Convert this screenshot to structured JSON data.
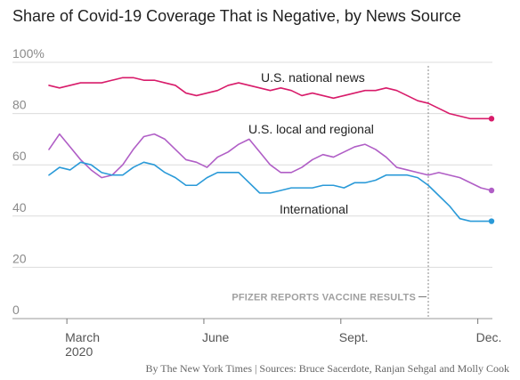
{
  "colors": {
    "national": "#d81b6a",
    "local": "#b05ec6",
    "international": "#2a9ad8"
  },
  "chart_data": {
    "type": "line",
    "title": "Share of Covid-19 Coverage That is Negative, by News Source",
    "ylim": [
      0,
      100
    ],
    "y_ticks": [
      "100%",
      "80",
      "60",
      "40",
      "20",
      "0"
    ],
    "y_tick_values": [
      100,
      80,
      60,
      40,
      20,
      0
    ],
    "x_tick_labels": [
      {
        "label": "March",
        "sublabel": "2020",
        "week": 1.7
      },
      {
        "label": "June",
        "sublabel": "",
        "week": 14.7
      },
      {
        "label": "Sept.",
        "sublabel": "",
        "week": 27.7
      },
      {
        "label": "Dec.",
        "sublabel": "",
        "week": 40.7
      }
    ],
    "x": [
      0,
      1,
      2,
      3,
      4,
      5,
      6,
      7,
      8,
      9,
      10,
      11,
      12,
      13,
      14,
      15,
      16,
      17,
      18,
      19,
      20,
      21,
      22,
      23,
      24,
      25,
      26,
      27,
      28,
      29,
      30,
      31,
      32,
      33,
      34,
      35,
      36,
      37,
      38,
      39,
      40,
      41,
      42
    ],
    "series": [
      {
        "name": "U.S. national news",
        "color_key": "national",
        "values": [
          91,
          90,
          91,
          92,
          92,
          92,
          93,
          94,
          94,
          93,
          93,
          92,
          91,
          88,
          87,
          88,
          89,
          91,
          92,
          91,
          90,
          89,
          90,
          89,
          87,
          88,
          87,
          86,
          87,
          88,
          89,
          89,
          90,
          89,
          87,
          85,
          84,
          82,
          80,
          79,
          78,
          78,
          78
        ]
      },
      {
        "name": "U.S. local and regional",
        "color_key": "local",
        "values": [
          66,
          72,
          67,
          62,
          58,
          55,
          56,
          60,
          66,
          71,
          72,
          70,
          66,
          62,
          61,
          59,
          63,
          65,
          68,
          70,
          65,
          60,
          57,
          57,
          59,
          62,
          64,
          63,
          65,
          67,
          68,
          66,
          63,
          59,
          58,
          57,
          56,
          57,
          56,
          55,
          53,
          51,
          50
        ]
      },
      {
        "name": "International",
        "color_key": "international",
        "values": [
          56,
          59,
          58,
          61,
          60,
          57,
          56,
          56,
          59,
          61,
          60,
          57,
          55,
          52,
          52,
          55,
          57,
          57,
          57,
          53,
          49,
          49,
          50,
          51,
          51,
          51,
          52,
          52,
          51,
          53,
          53,
          54,
          56,
          56,
          56,
          55,
          52,
          48,
          44,
          39,
          38,
          38,
          38
        ]
      }
    ],
    "series_labels": [
      "U.S. national news",
      "U.S. local and regional",
      "International"
    ],
    "annotation": {
      "text": "PFIZER REPORTS VACCINE RESULTS",
      "week": 36
    }
  },
  "credit": "By The New York Times | Sources: Bruce Sacerdote, Ranjan Sehgal and Molly Cook"
}
